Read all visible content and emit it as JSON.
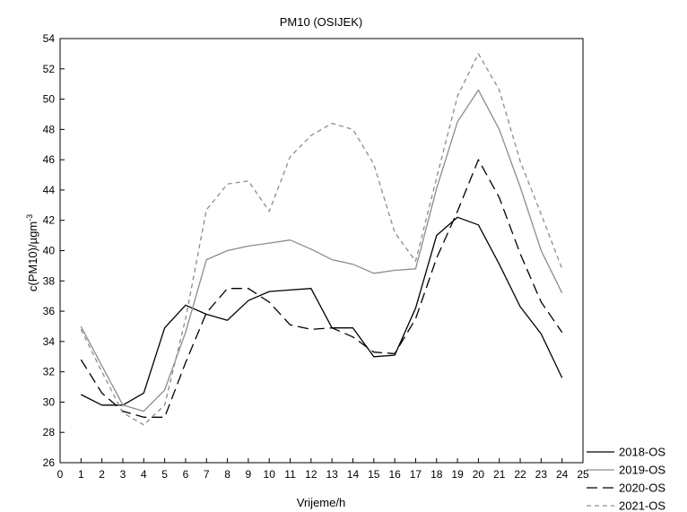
{
  "chart_data": {
    "type": "line",
    "title": "PM10 (OSIJEK)",
    "xlabel": "Vrijeme/h",
    "ylabel": "c(PM10)/µgm",
    "ylabel_sup": "-3",
    "xlim": [
      0,
      25
    ],
    "ylim": [
      26,
      54
    ],
    "x_ticks": [
      0,
      1,
      2,
      3,
      4,
      5,
      6,
      7,
      8,
      9,
      10,
      11,
      12,
      13,
      14,
      15,
      16,
      17,
      18,
      19,
      20,
      21,
      22,
      23,
      24,
      25
    ],
    "y_ticks": [
      26,
      28,
      30,
      32,
      34,
      36,
      38,
      40,
      42,
      44,
      46,
      48,
      50,
      52,
      54
    ],
    "grid": false,
    "legend_position": "bottom-right outside",
    "x": [
      1,
      2,
      3,
      4,
      5,
      6,
      7,
      8,
      9,
      10,
      11,
      12,
      13,
      14,
      15,
      16,
      17,
      18,
      19,
      20,
      21,
      22,
      23,
      24
    ],
    "series": [
      {
        "name": "2018-OS",
        "color": "#000000",
        "dash": "solid",
        "values": [
          30.5,
          29.8,
          29.8,
          30.6,
          34.9,
          36.4,
          35.8,
          35.4,
          36.7,
          37.3,
          37.4,
          37.5,
          34.9,
          34.9,
          33.0,
          33.1,
          36.2,
          41.0,
          42.2,
          41.7,
          39.1,
          36.3,
          34.5,
          31.6
        ]
      },
      {
        "name": "2019-OS",
        "color": "#8c8c8c",
        "dash": "solid",
        "values": [
          35.0,
          32.4,
          29.8,
          29.4,
          30.8,
          34.6,
          39.4,
          40.0,
          40.3,
          40.5,
          40.7,
          40.1,
          39.4,
          39.1,
          38.5,
          38.7,
          38.8,
          44.1,
          48.5,
          50.6,
          48.0,
          44.2,
          40.0,
          37.2
        ]
      },
      {
        "name": "2020-OS",
        "color": "#000000",
        "dash": "long",
        "values": [
          32.8,
          30.6,
          29.4,
          29.0,
          29.0,
          32.6,
          35.9,
          37.5,
          37.5,
          36.6,
          35.1,
          34.8,
          34.9,
          34.3,
          33.3,
          33.2,
          35.5,
          39.5,
          42.6,
          46.0,
          43.5,
          39.8,
          36.6,
          34.6
        ]
      },
      {
        "name": "2021-OS",
        "color": "#8c8c8c",
        "dash": "short",
        "values": [
          34.8,
          32.0,
          29.3,
          28.5,
          29.8,
          35.5,
          42.7,
          44.4,
          44.6,
          42.6,
          46.2,
          47.6,
          48.4,
          48.0,
          45.7,
          41.2,
          39.3,
          44.8,
          50.2,
          53.0,
          50.6,
          45.9,
          42.4,
          38.8
        ]
      }
    ]
  }
}
